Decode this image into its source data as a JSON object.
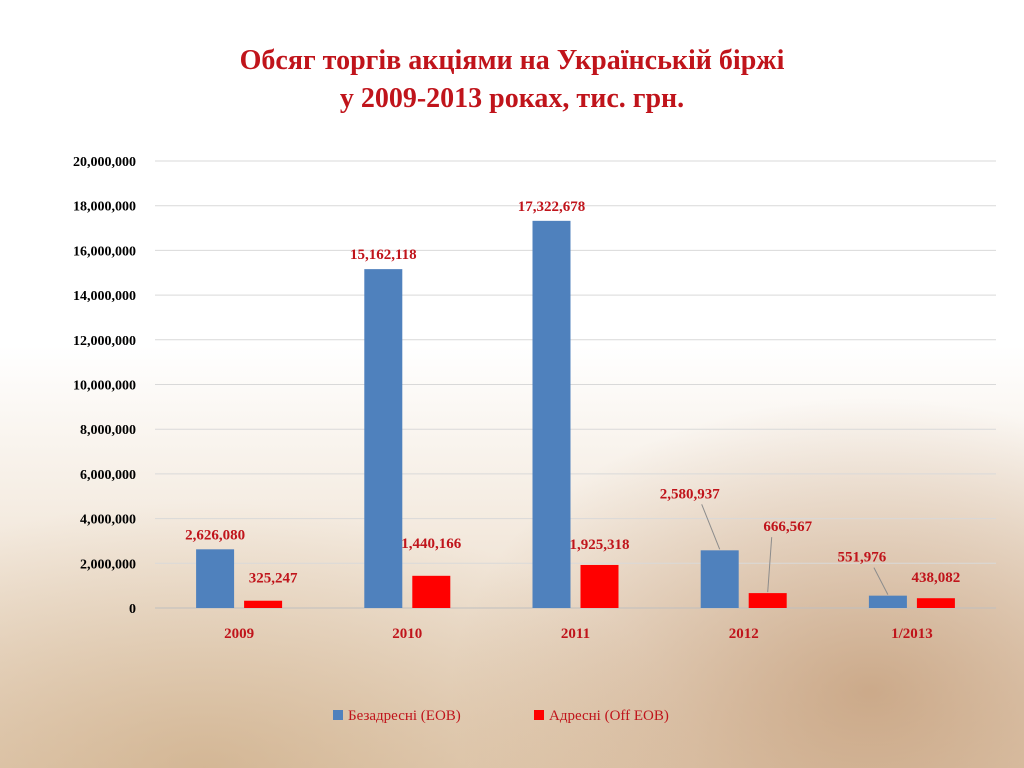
{
  "chart_data": {
    "type": "bar",
    "title": [
      "Обсяг торгів акціями на Українській біржі",
      "у 2009-2013 роках, тис. грн."
    ],
    "categories": [
      "2009",
      "2010",
      "2011",
      "2012",
      "1/2013"
    ],
    "series": [
      {
        "name": "Безадресні (EOB)",
        "color": "#4f81bd",
        "values": [
          2626080,
          15162118,
          17322678,
          2580937,
          551976
        ],
        "labels": [
          "2,626,080",
          "15,162,118",
          "17,322,678",
          "2,580,937",
          "551,976"
        ]
      },
      {
        "name": "Адресні (Off EOB)",
        "color": "#ff0000",
        "values": [
          325247,
          1440166,
          1925318,
          666567,
          438082
        ],
        "labels": [
          "325,247",
          "1,440,166",
          "1,925,318",
          "666,567",
          "438,082"
        ]
      }
    ],
    "yticks": [
      "0",
      "2,000,000",
      "4,000,000",
      "6,000,000",
      "8,000,000",
      "10,000,000",
      "12,000,000",
      "14,000,000",
      "16,000,000",
      "18,000,000",
      "20,000,000"
    ],
    "ylim": [
      0,
      20000000
    ],
    "grid": true,
    "legend_position": "bottom"
  }
}
